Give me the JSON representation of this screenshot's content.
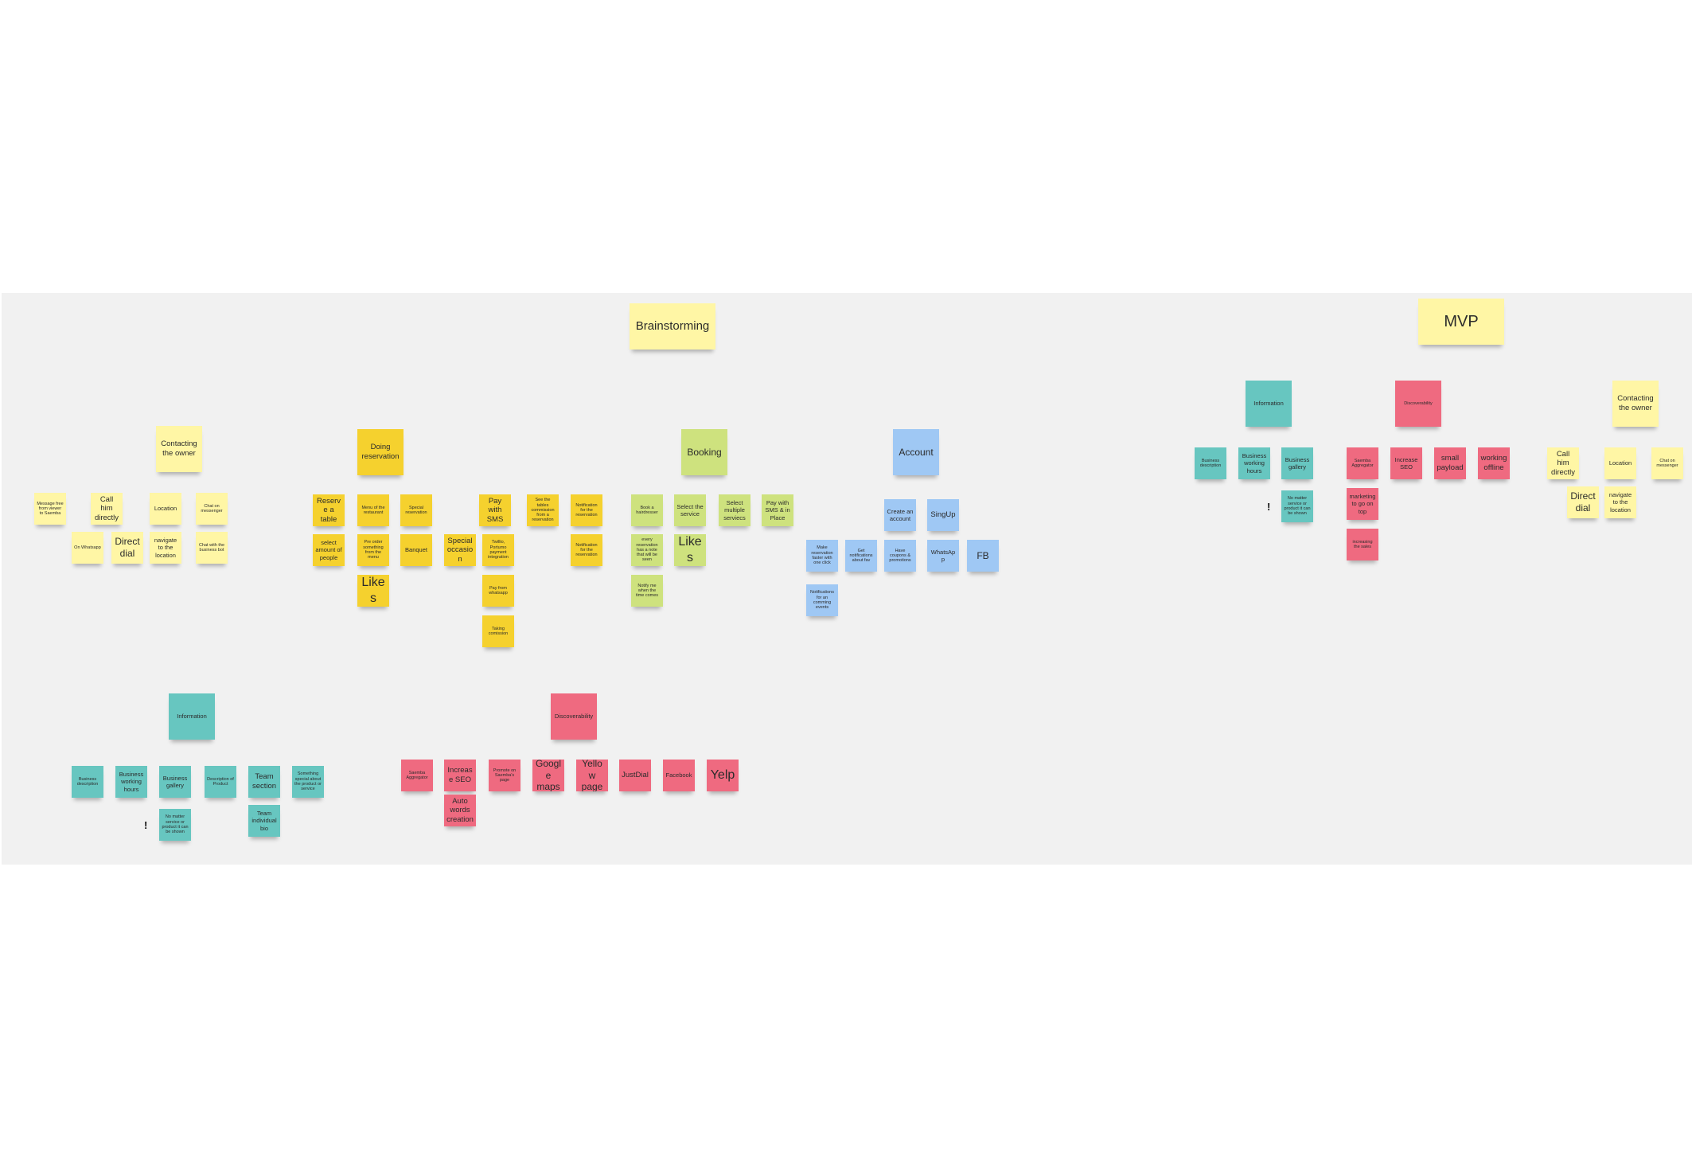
{
  "colors": {
    "canvas": "#ffffff",
    "board": "#f1f1f1",
    "sticky_light_yellow": "#fff6a5",
    "sticky_orange_yellow": "#f5d12e",
    "sticky_green": "#cee27e",
    "sticky_blue": "#9fc8f4",
    "sticky_teal": "#67c6c0",
    "sticky_pink": "#ef6a80"
  },
  "brainstorming": {
    "title": "Brainstorming",
    "contacting": {
      "header": "Contacting the owner",
      "message": "Message free from viewer to Saemba",
      "call": "Call him directly",
      "location": "Location",
      "messenger": "Chat on messenger",
      "whatsapp": "On Whatsapp",
      "direct_dial": "Direct dial",
      "navigate": "navigate to the location",
      "business_bot": "Chat with the business bot"
    },
    "reservation": {
      "header": "Doing reservation",
      "reserve_table": "Reserve a table",
      "menu": "Menu of the restaurant",
      "special_reservation": "Special reservation",
      "select_amount": "select amount of people",
      "preorder": "Pre order something from the menu",
      "banquet": "Banquet",
      "special_occasion": "Special occasion",
      "likes": "Likes",
      "pay_sms": "Pay with SMS",
      "twilio": "Twillio, Portumo payment integration",
      "pay_whatsapp": "Pay from whatsapp",
      "taking_commission": "Taking comission",
      "table_commission": "See the tables commission from a reservation",
      "notification_1": "Notification for the reservation",
      "notification_2": "Notification for the reservation"
    },
    "booking": {
      "header": "Booking",
      "book_hairdresser": "Book a hairdresser",
      "select_service": "Select the service",
      "select_multiple": "Select multiple serviecs",
      "pay_sms_place": "Pay with SMS & in Place",
      "every_reservation": "every reservation has a note that will be seen",
      "likes": "Likes",
      "notify_me": "Notify me when the time comes"
    },
    "account": {
      "header": "Account",
      "create_account": "Create an account",
      "signup": "SingUp",
      "make_reservation": "Make reservation faster with one click",
      "get_notifications": "Get notifications about fav",
      "have_coupons": "Have coupons & promotions",
      "whatsapp": "WhatsApp",
      "fb": "FB",
      "notifications_events": "Notifications for an comming events"
    },
    "information": {
      "header": "Information",
      "business_description": "Business description",
      "working_hours": "Business working hours",
      "gallery": "Business gallery",
      "product_description": "Description of Product",
      "team_section": "Team section",
      "something_special": "Something special about the product or service",
      "exclamation": "!",
      "no_matter": "No matter service or product it can be shown",
      "team_bio": "Team individual bio"
    },
    "discoverability": {
      "header": "Discoverability",
      "aggregator": "Saemba Aggregator",
      "increase_seo": "Increase SEO",
      "promote": "Promote on Saemba's page",
      "google_maps": "Google maps",
      "yellow_page": "Yellow page",
      "justdial": "JustDial",
      "facebook": "Facebook",
      "yelp": "Yelp",
      "auto_words": "Auto words creation"
    }
  },
  "mvp": {
    "title": "MVP",
    "information": {
      "header": "Information",
      "business_description": "Business description",
      "working_hours": "Business working hours",
      "gallery": "Business gallery",
      "exclamation": "!",
      "no_matter": "No matter service or product it can be shown"
    },
    "discoverability": {
      "header": "Discoverability",
      "aggregator": "Saemba Aggregator",
      "increase_seo": "Increase SEO",
      "small_payload": "small payload",
      "working_offline": "working offline",
      "marketing": "marketing to go on top",
      "increasing_sales": "increasing the sales"
    },
    "contacting": {
      "header": "Contacting the owner",
      "call": "Call him directly",
      "location": "Location",
      "messenger": "Chat on messenger",
      "direct_dial": "Direct dial",
      "navigate": "navigate to the location"
    }
  }
}
